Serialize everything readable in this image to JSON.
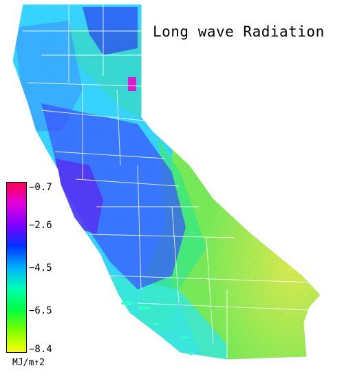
{
  "map": {
    "title": "Long wave Radiation",
    "legend": {
      "unit": "MJ/m↑2",
      "ticks": [
        "−0.7",
        "−2.6",
        "−4.5",
        "−6.5",
        "−8.4"
      ],
      "colors": [
        "#ff0050",
        "#e000e0",
        "#8000ff",
        "#0033ff",
        "#00b0ff",
        "#00ffb0",
        "#00ff40",
        "#80ff00",
        "#ffff00"
      ]
    },
    "regions": [
      "california-state"
    ],
    "colors": {
      "north_coast": "#33ccff",
      "sierra": "#3355ff",
      "central_coast": "#5522ee",
      "east_sierra": "#22ff99",
      "southeast_desert": "#bbff33",
      "south_coast": "#33ffcc",
      "tahoe_hotspot": "#ff00cc"
    }
  }
}
